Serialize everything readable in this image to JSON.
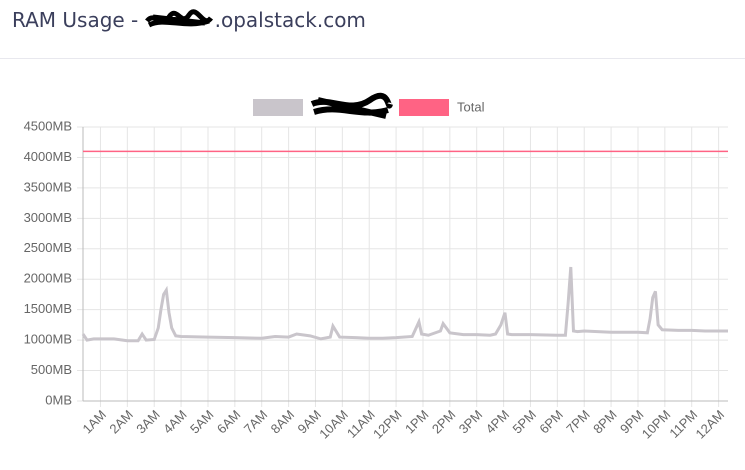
{
  "header": {
    "title_prefix": "RAM Usage -",
    "title_suffix": ".opalstack.com"
  },
  "chart_data": {
    "type": "line",
    "ylim": [
      0,
      4500
    ],
    "yticks": [
      {
        "value": 0,
        "label": "0MB"
      },
      {
        "value": 500,
        "label": "500MB"
      },
      {
        "value": 1000,
        "label": "1000MB"
      },
      {
        "value": 1500,
        "label": "1500MB"
      },
      {
        "value": 2000,
        "label": "2000MB"
      },
      {
        "value": 2500,
        "label": "2500MB"
      },
      {
        "value": 3000,
        "label": "3000MB"
      },
      {
        "value": 3500,
        "label": "3500MB"
      },
      {
        "value": 4000,
        "label": "4000MB"
      },
      {
        "value": 4500,
        "label": "4500MB"
      }
    ],
    "xlim": [
      0.35,
      24.35
    ],
    "xticks": [
      {
        "value": 1,
        "label": "1AM"
      },
      {
        "value": 2,
        "label": "2AM"
      },
      {
        "value": 3,
        "label": "3AM"
      },
      {
        "value": 4,
        "label": "4AM"
      },
      {
        "value": 5,
        "label": "5AM"
      },
      {
        "value": 6,
        "label": "6AM"
      },
      {
        "value": 7,
        "label": "7AM"
      },
      {
        "value": 8,
        "label": "8AM"
      },
      {
        "value": 9,
        "label": "9AM"
      },
      {
        "value": 10,
        "label": "10AM"
      },
      {
        "value": 11,
        "label": "11AM"
      },
      {
        "value": 12,
        "label": "12PM"
      },
      {
        "value": 13,
        "label": "1PM"
      },
      {
        "value": 14,
        "label": "2PM"
      },
      {
        "value": 15,
        "label": "3PM"
      },
      {
        "value": 16,
        "label": "4PM"
      },
      {
        "value": 17,
        "label": "5PM"
      },
      {
        "value": 18,
        "label": "6PM"
      },
      {
        "value": 19,
        "label": "7PM"
      },
      {
        "value": 20,
        "label": "8PM"
      },
      {
        "value": 21,
        "label": "9PM"
      },
      {
        "value": 22,
        "label": "10PM"
      },
      {
        "value": 23,
        "label": "11PM"
      },
      {
        "value": 24,
        "label": "12AM"
      }
    ],
    "grid": true,
    "series": [
      {
        "color": "#c9c5cb",
        "x": [
          0.35,
          0.5,
          0.75,
          1,
          1.5,
          2,
          2.4,
          2.55,
          2.7,
          3,
          3.15,
          3.25,
          3.35,
          3.45,
          3.55,
          3.65,
          3.8,
          4,
          5,
          6,
          7,
          7.5,
          8,
          8.3,
          8.8,
          9.2,
          9.55,
          9.65,
          9.9,
          10.5,
          11,
          11.5,
          12,
          12.6,
          12.85,
          12.95,
          13.2,
          13.65,
          13.75,
          14,
          14.5,
          15,
          15.5,
          15.7,
          15.9,
          16.05,
          16.15,
          16.3,
          17,
          18,
          18.3,
          18.4,
          18.5,
          18.6,
          18.75,
          19,
          19.5,
          20,
          20.5,
          21,
          21.35,
          21.45,
          21.55,
          21.65,
          21.75,
          21.9,
          22.5,
          23,
          23.5,
          24,
          24.35
        ],
        "values": [
          1100,
          1000,
          1020,
          1020,
          1020,
          990,
          990,
          1100,
          1000,
          1010,
          1200,
          1500,
          1750,
          1820,
          1450,
          1200,
          1070,
          1060,
          1050,
          1040,
          1030,
          1060,
          1050,
          1100,
          1070,
          1020,
          1050,
          1230,
          1050,
          1040,
          1030,
          1030,
          1040,
          1060,
          1300,
          1100,
          1080,
          1150,
          1270,
          1120,
          1090,
          1090,
          1080,
          1100,
          1250,
          1450,
          1100,
          1090,
          1090,
          1080,
          1080,
          1600,
          2200,
          1150,
          1140,
          1150,
          1140,
          1130,
          1130,
          1130,
          1120,
          1350,
          1700,
          1800,
          1250,
          1170,
          1160,
          1160,
          1150,
          1150,
          1150
        ]
      },
      {
        "name": "Total",
        "color": "#ff6384",
        "x": [
          0.35,
          24.35
        ],
        "values": [
          4100,
          4100
        ]
      }
    ]
  }
}
